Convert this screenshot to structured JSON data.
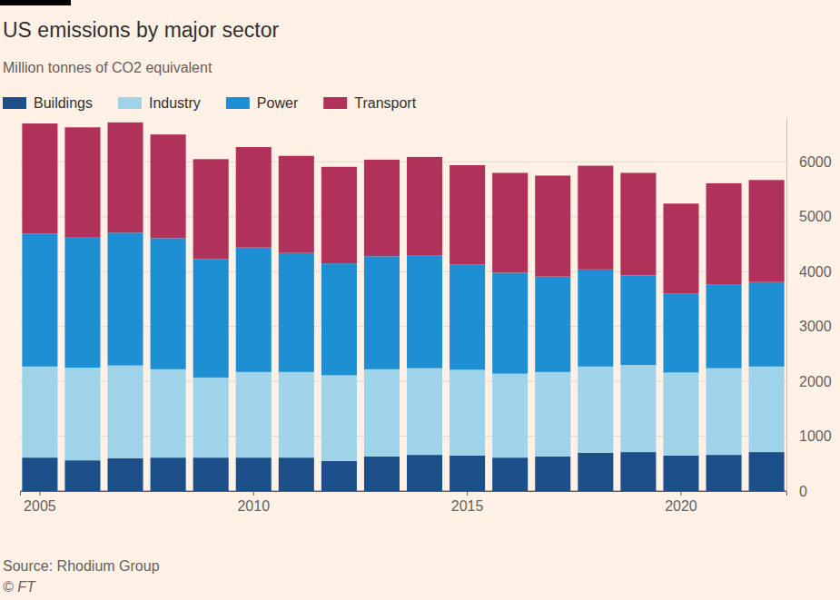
{
  "chart_data": {
    "type": "bar",
    "stacked": true,
    "grid": true,
    "legend": "top-left",
    "title": "US emissions by major sector",
    "subtitle": "Million tonnes of CO2 equivalent",
    "source": "Source: Rhodium Group",
    "credit": "© FT",
    "categories": [
      "2005",
      null,
      null,
      null,
      null,
      "2010",
      null,
      null,
      null,
      null,
      "2015",
      null,
      null,
      null,
      null,
      "2020",
      null,
      null
    ],
    "series": [
      {
        "name": "Buildings",
        "color": "#1c4f8a",
        "values": [
          610,
          560,
          600,
          610,
          610,
          610,
          610,
          550,
          630,
          660,
          650,
          610,
          630,
          700,
          710,
          650,
          660,
          710
        ]
      },
      {
        "name": "Industry",
        "color": "#9fd3ea",
        "values": [
          1660,
          1690,
          1690,
          1610,
          1460,
          1560,
          1560,
          1560,
          1590,
          1580,
          1560,
          1530,
          1540,
          1570,
          1590,
          1510,
          1580,
          1560
        ]
      },
      {
        "name": "Power",
        "color": "#1f8fd3",
        "values": [
          2420,
          2370,
          2420,
          2390,
          2160,
          2270,
          2170,
          2040,
          2060,
          2060,
          1920,
          1840,
          1740,
          1770,
          1630,
          1440,
          1530,
          1540
        ]
      },
      {
        "name": "Transport",
        "color": "#b0325a",
        "values": [
          2010,
          2010,
          2010,
          1890,
          1820,
          1830,
          1770,
          1760,
          1760,
          1790,
          1810,
          1820,
          1840,
          1890,
          1870,
          1640,
          1840,
          1860
        ]
      }
    ],
    "ylim": [
      0,
      6800
    ],
    "yticks": [
      0,
      1000,
      2000,
      3000,
      4000,
      5000,
      6000
    ]
  }
}
